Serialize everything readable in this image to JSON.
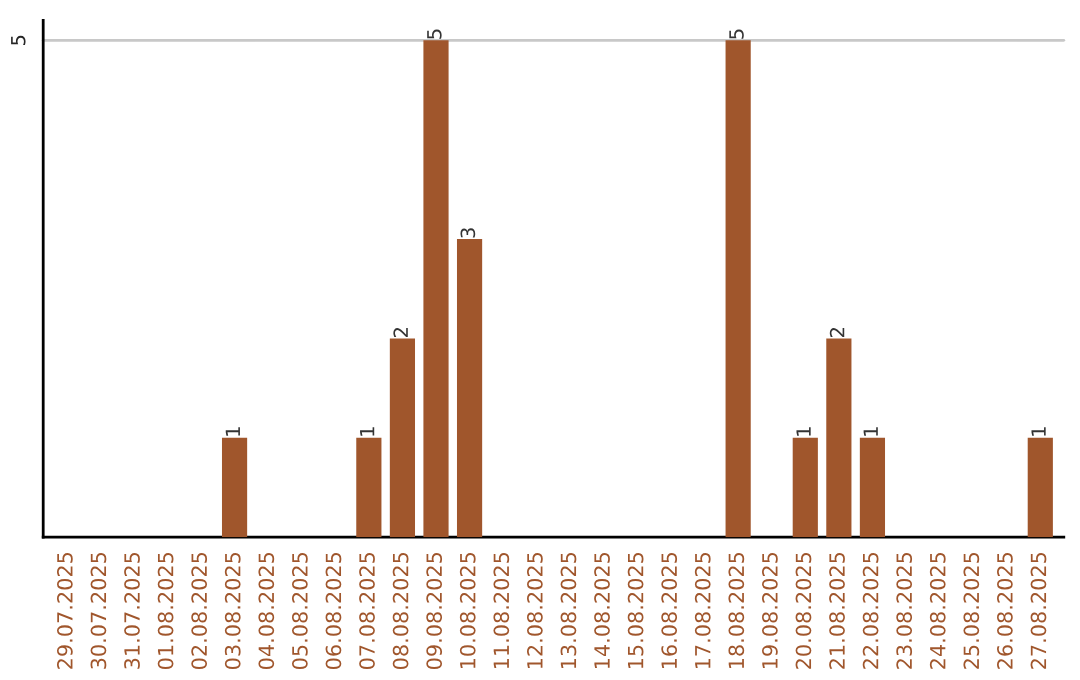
{
  "chart_data": {
    "type": "bar",
    "categories": [
      "29.07.2025",
      "30.07.2025",
      "31.07.2025",
      "01.08.2025",
      "02.08.2025",
      "03.08.2025",
      "04.08.2025",
      "05.08.2025",
      "06.08.2025",
      "07.08.2025",
      "08.08.2025",
      "09.08.2025",
      "10.08.2025",
      "11.08.2025",
      "12.08.2025",
      "13.08.2025",
      "14.08.2025",
      "15.08.2025",
      "16.08.2025",
      "17.08.2025",
      "18.08.2025",
      "19.08.2025",
      "20.08.2025",
      "21.08.2025",
      "22.08.2025",
      "23.08.2025",
      "24.08.2025",
      "25.08.2025",
      "26.08.2025",
      "27.08.2025"
    ],
    "values": [
      0,
      0,
      0,
      0,
      0,
      1,
      0,
      0,
      0,
      1,
      2,
      5,
      3,
      0,
      0,
      0,
      0,
      0,
      0,
      0,
      5,
      0,
      1,
      2,
      1,
      0,
      0,
      0,
      0,
      1
    ],
    "value_labels": [
      null,
      null,
      null,
      null,
      null,
      "1",
      null,
      null,
      null,
      "1",
      "2",
      "5",
      "3",
      null,
      null,
      null,
      null,
      null,
      null,
      null,
      "5",
      null,
      "1",
      "2",
      "1",
      null,
      null,
      null,
      null,
      "1"
    ],
    "color": "#a0562c",
    "ylim": [
      0,
      5.2
    ],
    "yticks": [
      5
    ],
    "grid": "y"
  }
}
